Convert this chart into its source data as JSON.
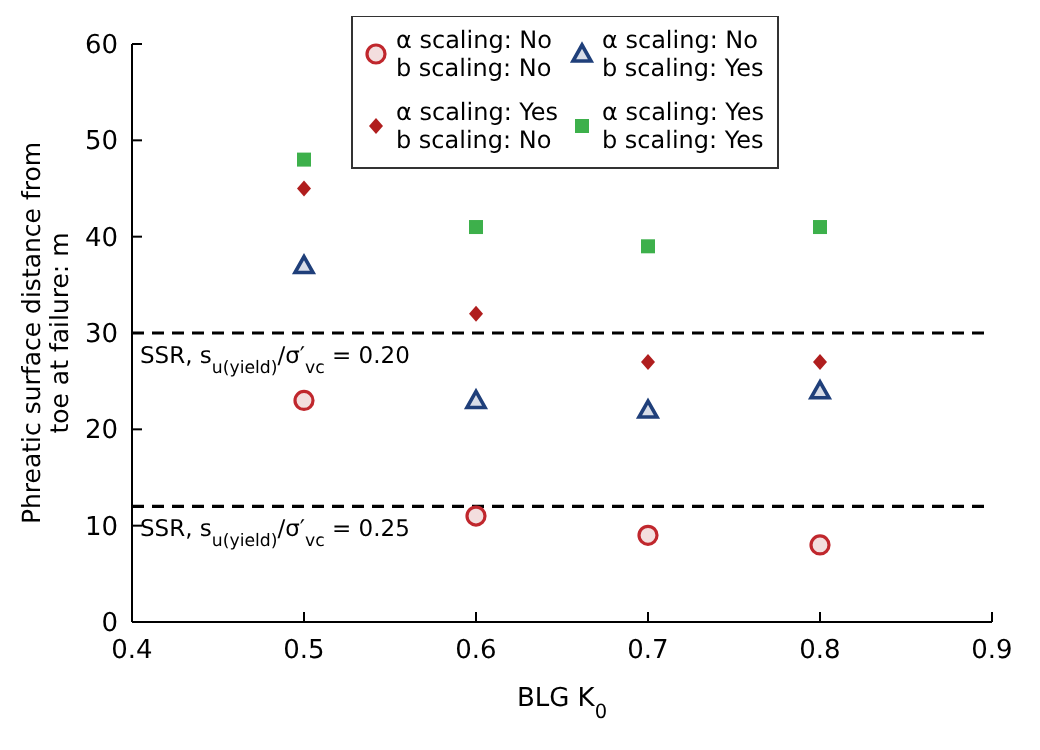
{
  "chart_data": {
    "type": "scatter",
    "xlabel": "BLG K$_{0}$",
    "ylabel": "Phreatic surface distance from toe at failure: m",
    "x": [
      0.5,
      0.6,
      0.7,
      0.8
    ],
    "series": [
      {
        "name": "α scaling: No\nb scaling: No",
        "color": "#c0272d",
        "marker": "circle",
        "values": [
          23,
          11,
          9,
          8
        ]
      },
      {
        "name": "α scaling: Yes\nb scaling: No",
        "color": "#b01e1e",
        "marker": "diamond",
        "values": [
          45,
          32,
          27,
          27
        ]
      },
      {
        "name": "α scaling: No\nb scaling: Yes",
        "color": "#1f3f7a",
        "marker": "triangle",
        "values": [
          37,
          23,
          22,
          24
        ]
      },
      {
        "name": "α scaling: Yes\nb scaling: Yes",
        "color": "#3db04b",
        "marker": "square",
        "values": [
          48,
          41,
          39,
          41
        ]
      }
    ],
    "xlim": [
      0.4,
      0.9
    ],
    "xticks": [
      0.4,
      0.5,
      0.6,
      0.7,
      0.8,
      0.9
    ],
    "ylim": [
      0,
      60
    ],
    "yticks": [
      0,
      10,
      20,
      30,
      40,
      50,
      60
    ],
    "ref_lines": [
      {
        "axis": "y",
        "value": 30,
        "line_style": "dashed",
        "color": "#000000"
      },
      {
        "axis": "y",
        "value": 12,
        "line_style": "dashed",
        "color": "#000000"
      }
    ],
    "annotations": [
      "SSR, s$_{u(yield)}$/σ′$_{vc}$ = 0.20",
      "SSR, s$_{u(yield)}$/σ′$_{vc}$ = 0.25"
    ],
    "legend": "top",
    "grid": false
  }
}
